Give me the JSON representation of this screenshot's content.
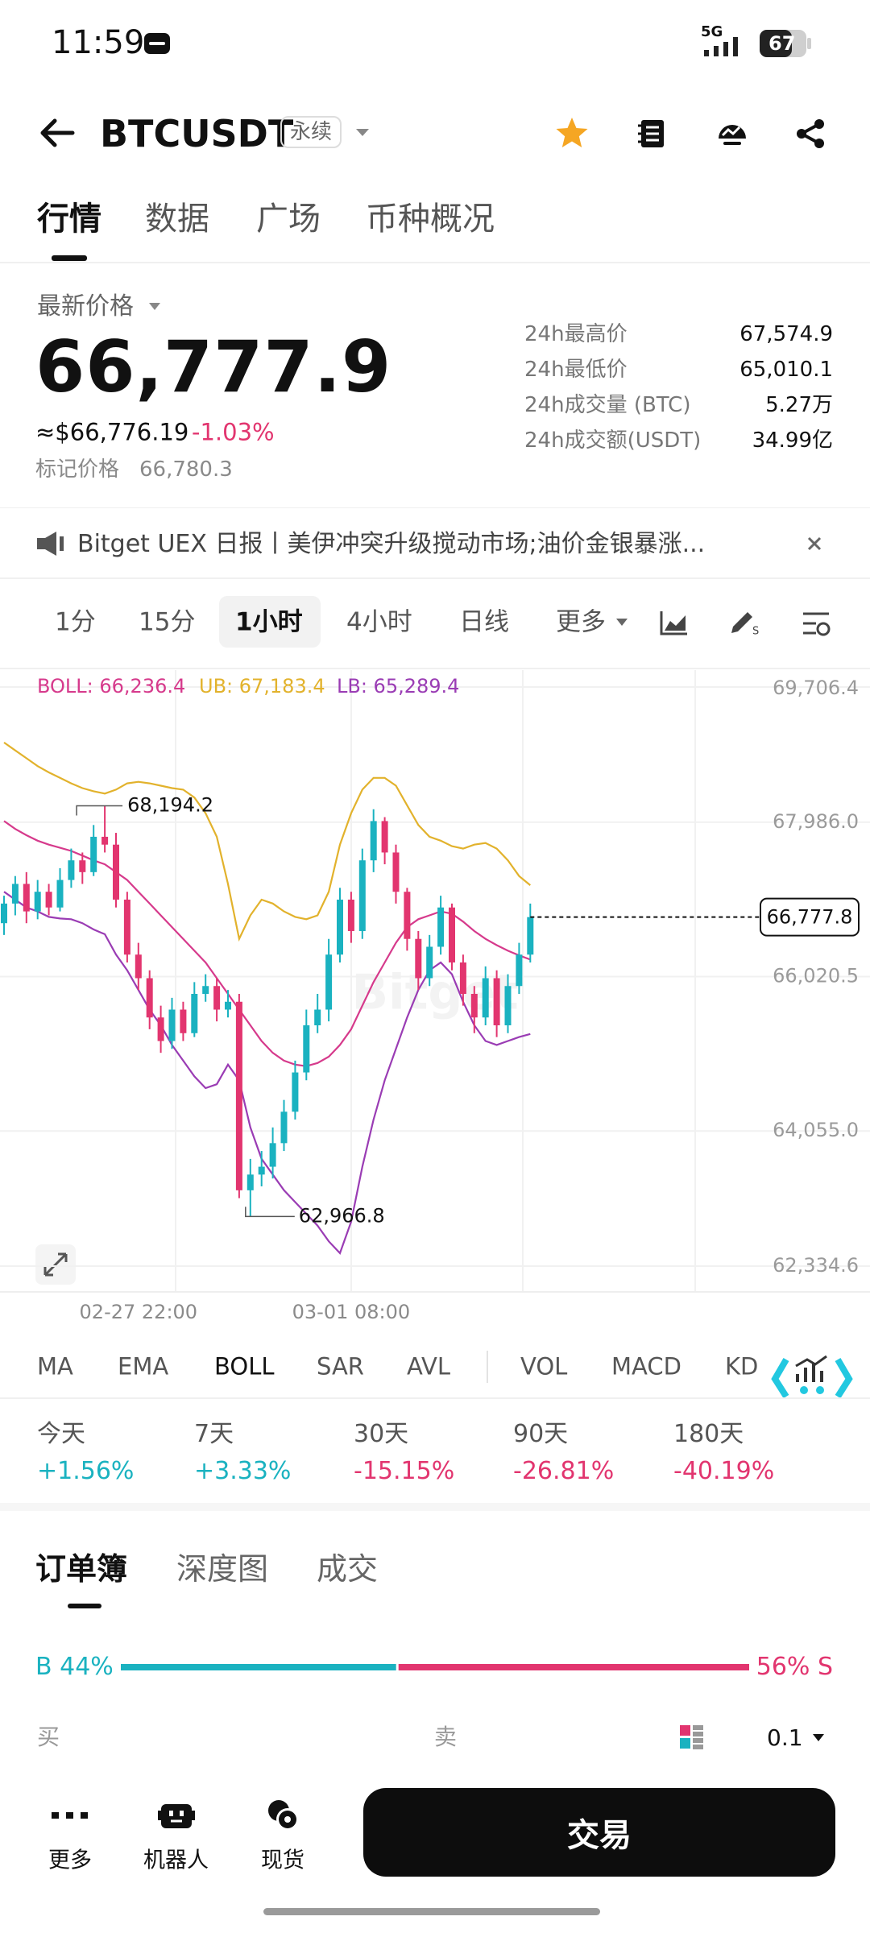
{
  "status_bar": {
    "time": "11:59",
    "network": "5G",
    "battery": "67"
  },
  "header": {
    "symbol": "BTCUSDT",
    "badge": "永续"
  },
  "tabs": [
    "行情",
    "数据",
    "广场",
    "币种概况"
  ],
  "price": {
    "label": "最新价格",
    "last": "66,777.9",
    "usd": "≈$66,776.19",
    "change": "-1.03%",
    "mark_label": "标记价格",
    "mark": "66,780.3"
  },
  "stats": [
    [
      "24h最高价",
      "67,574.9"
    ],
    [
      "24h最低价",
      "65,010.1"
    ],
    [
      "24h成交量 (BTC)",
      "5.27万"
    ],
    [
      "24h成交额(USDT)",
      "34.99亿"
    ]
  ],
  "announcement": "Bitget UEX 日报丨美伊冲突升级搅动市场;油价金银暴涨...",
  "intervals": [
    "1分",
    "15分",
    "1小时",
    "4小时",
    "日线",
    "更多"
  ],
  "chart_data": {
    "type": "candlestick",
    "categories": [
      null,
      null,
      null,
      null,
      null,
      null,
      null,
      null,
      null,
      null,
      null,
      null,
      "02-27 22:00",
      null,
      null,
      null,
      null,
      null,
      null,
      null,
      null,
      null,
      null,
      null,
      null,
      null,
      null,
      null,
      null,
      null,
      null,
      "03-01 08:00",
      null,
      null,
      null,
      null,
      null,
      null,
      null,
      null,
      null,
      null,
      null,
      null,
      null,
      null,
      null,
      null
    ],
    "open": [
      66700,
      66950,
      67200,
      66850,
      67100,
      66900,
      67250,
      67500,
      67350,
      67800,
      67700,
      67000,
      66300,
      66000,
      65500,
      65200,
      65600,
      65300,
      65800,
      65900,
      65600,
      65700,
      63300,
      63500,
      63600,
      63900,
      64300,
      64800,
      65400,
      65600,
      66300,
      67000,
      66600,
      67500,
      68000,
      67600,
      67100,
      66500,
      66000,
      66400,
      66900,
      66200,
      65800,
      65500,
      66000,
      65400,
      65900,
      66300
    ],
    "high": [
      67050,
      67300,
      67350,
      67250,
      67200,
      67400,
      67650,
      67600,
      67950,
      68194.2,
      67850,
      67100,
      66450,
      66100,
      65650,
      65750,
      65700,
      65950,
      66050,
      66000,
      65850,
      65800,
      63700,
      63800,
      64100,
      64450,
      64950,
      65600,
      65800,
      66500,
      67150,
      67100,
      67650,
      68150,
      68050,
      67700,
      67150,
      66600,
      66550,
      67050,
      66950,
      66300,
      65900,
      66150,
      66100,
      66050,
      66450,
      66950
    ],
    "low": [
      66550,
      66800,
      66700,
      66750,
      66800,
      66850,
      67150,
      67200,
      67300,
      67600,
      66900,
      66200,
      65850,
      65350,
      65050,
      65100,
      65200,
      65250,
      65700,
      65450,
      65500,
      63200,
      62966.8,
      63350,
      63450,
      63800,
      64200,
      64700,
      65300,
      65450,
      66200,
      66450,
      66500,
      67350,
      67450,
      66950,
      66350,
      65850,
      65900,
      66300,
      66100,
      65650,
      65300,
      65400,
      65250,
      65300,
      65800,
      66200
    ],
    "close": [
      66950,
      67200,
      66850,
      67100,
      66900,
      67250,
      67500,
      67350,
      67800,
      67700,
      67000,
      66300,
      66000,
      65500,
      65200,
      65600,
      65300,
      65800,
      65900,
      65600,
      65700,
      63300,
      63500,
      63600,
      63900,
      64300,
      64800,
      65400,
      65600,
      66300,
      67000,
      66600,
      67500,
      68000,
      67600,
      67100,
      66500,
      66000,
      66400,
      66900,
      66200,
      65800,
      65500,
      66000,
      65400,
      65900,
      66300,
      66777.8
    ],
    "up_color": "#1ab2c0",
    "down_color": "#e2356f",
    "lines": [
      {
        "legend": "BOLL: 66,236.4",
        "color": "#d63a8c",
        "values": [
          68000,
          67900,
          67820,
          67750,
          67700,
          67660,
          67620,
          67560,
          67500,
          67450,
          67350,
          67250,
          67100,
          66950,
          66800,
          66650,
          66500,
          66350,
          66200,
          66000,
          65800,
          65600,
          65400,
          65200,
          65050,
          64950,
          64900,
          64880,
          64920,
          65000,
          65150,
          65350,
          65650,
          65950,
          66200,
          66450,
          66650,
          66750,
          66800,
          66850,
          66820,
          66720,
          66600,
          66500,
          66420,
          66350,
          66290,
          66236.4
        ]
      },
      {
        "legend": "UB: 67,183.4",
        "color": "#e2b22c",
        "values": [
          69000,
          68900,
          68800,
          68700,
          68620,
          68550,
          68480,
          68420,
          68380,
          68350,
          68400,
          68480,
          68500,
          68480,
          68450,
          68420,
          68400,
          68300,
          68100,
          67800,
          67200,
          66500,
          66800,
          67000,
          66950,
          66850,
          66780,
          66750,
          66800,
          67100,
          67700,
          68100,
          68400,
          68550,
          68550,
          68450,
          68200,
          67950,
          67800,
          67750,
          67680,
          67650,
          67700,
          67720,
          67650,
          67500,
          67300,
          67183.4
        ]
      },
      {
        "legend": "LB: 65,289.4",
        "color": "#9a3cb4",
        "values": [
          67100,
          67000,
          66900,
          66850,
          66780,
          66760,
          66750,
          66700,
          66620,
          66560,
          66300,
          66100,
          65850,
          65600,
          65400,
          65150,
          64950,
          64750,
          64600,
          64650,
          64900,
          64700,
          64100,
          63700,
          63500,
          63300,
          63150,
          63000,
          62850,
          62650,
          62500,
          62900,
          63600,
          64200,
          64700,
          65100,
          65500,
          65850,
          66100,
          66200,
          66050,
          65700,
          65400,
          65200,
          65150,
          65200,
          65250,
          65289.4
        ]
      }
    ],
    "high_label": {
      "value": 68194.2,
      "label": "68,194.2"
    },
    "low_label": {
      "value": 62966.8,
      "label": "62,966.8"
    },
    "current": {
      "value": 66777.8,
      "label": "66,777.8"
    },
    "ylim": [
      62334.6,
      69706.4
    ],
    "yticks": [
      {
        "value": 69706.4,
        "label": "69,706.4"
      },
      {
        "value": 67986.0,
        "label": "67,986.0"
      },
      {
        "value": 66020.5,
        "label": "66,020.5"
      },
      {
        "value": 64055.0,
        "label": "64,055.0"
      },
      {
        "value": 62334.6,
        "label": "62,334.6"
      }
    ],
    "grid": true
  },
  "indicators": [
    "MA",
    "EMA",
    "BOLL",
    "SAR",
    "AVL",
    "VOL",
    "MACD",
    "KD"
  ],
  "performance": [
    {
      "period": "今天",
      "change": "+1.56%"
    },
    {
      "period": "7天",
      "change": "+3.33%"
    },
    {
      "period": "30天",
      "change": "-15.15%"
    },
    {
      "period": "90天",
      "change": "-26.81%"
    },
    {
      "period": "180天",
      "change": "-40.19%"
    }
  ],
  "order_book": {
    "tabs": [
      "订单簿",
      "深度图",
      "成交"
    ],
    "ratio": {
      "buy": 44,
      "buy_label": "B 44%",
      "sell": 56,
      "sell_label": "56% S",
      "buy_color": "#1ab2c0",
      "sell_color": "#e2356f"
    },
    "buy": "买",
    "sell": "卖",
    "precision": "0.1"
  },
  "bottom_nav": [
    "更多",
    "机器人",
    "现货"
  ],
  "trade_button": "交易"
}
